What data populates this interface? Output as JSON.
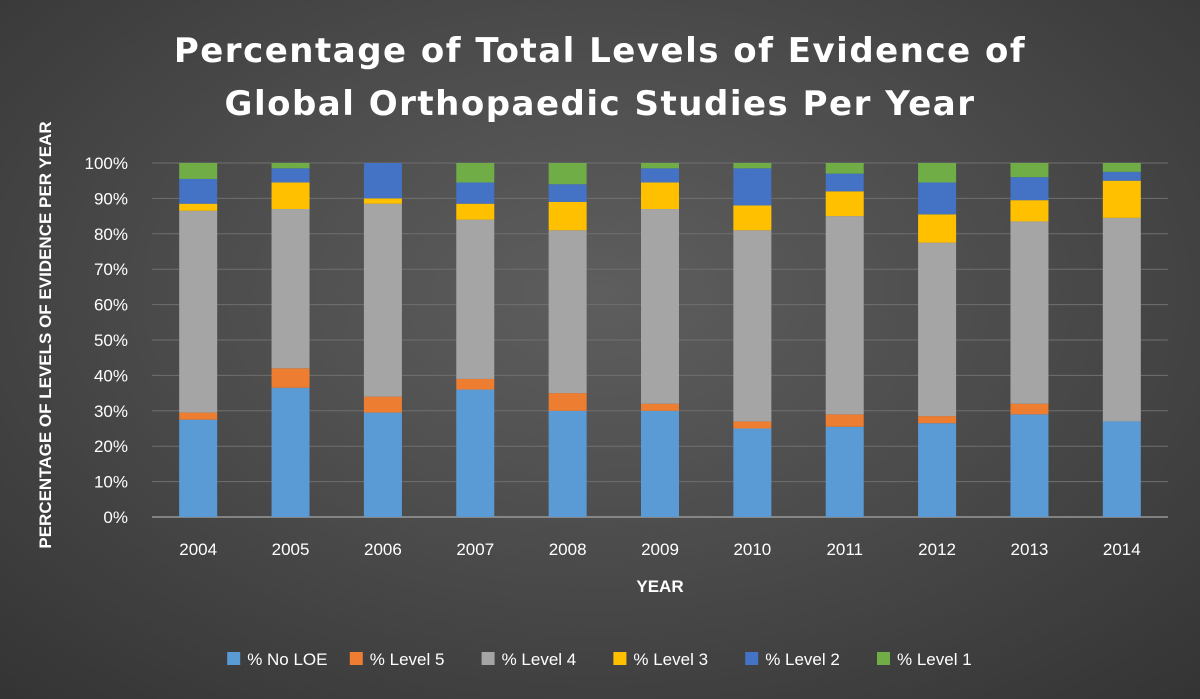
{
  "chart_data": {
    "type": "bar",
    "stacked": true,
    "title_lines": [
      "Percentage of Total Levels of Evidence of",
      "Global Orthopaedic Studies Per Year"
    ],
    "xlabel": "YEAR",
    "ylabel": "PERCENTAGE OF LEVELS OF EVIDENCE PER YEAR",
    "ylim": [
      0,
      100
    ],
    "y_ticks": [
      0,
      10,
      20,
      30,
      40,
      50,
      60,
      70,
      80,
      90,
      100
    ],
    "y_tick_labels": [
      "0%",
      "10%",
      "20%",
      "30%",
      "40%",
      "50%",
      "60%",
      "70%",
      "80%",
      "90%",
      "100%"
    ],
    "grid": true,
    "legend_position": "bottom",
    "categories": [
      "2004",
      "2005",
      "2006",
      "2007",
      "2008",
      "2009",
      "2010",
      "2011",
      "2012",
      "2013",
      "2014"
    ],
    "series": [
      {
        "name": "% No LOE",
        "color": "#5b9bd5",
        "values": [
          27.5,
          36.5,
          29.5,
          36,
          30,
          30,
          25,
          25.5,
          26.5,
          29,
          27
        ]
      },
      {
        "name": "% Level 5",
        "color": "#ed7d31",
        "values": [
          2,
          5.5,
          4.5,
          3,
          5,
          2,
          2,
          3.5,
          2,
          3,
          0
        ]
      },
      {
        "name": "% Level 4",
        "color": "#a5a5a5",
        "values": [
          57,
          45,
          54.5,
          45,
          46,
          55,
          54,
          56,
          49,
          51.5,
          57.5
        ]
      },
      {
        "name": "% Level 3",
        "color": "#ffc000",
        "values": [
          2,
          7.5,
          1.5,
          4.5,
          8,
          7.5,
          7,
          7,
          8,
          6,
          10.5
        ]
      },
      {
        "name": "% Level 2",
        "color": "#4472c4",
        "values": [
          7,
          4,
          10,
          6,
          5,
          4,
          10.5,
          5,
          9,
          6.5,
          2.5
        ]
      },
      {
        "name": "% Level 1",
        "color": "#70ad47",
        "values": [
          4.5,
          1.5,
          0,
          5.5,
          6,
          1.5,
          1.5,
          3,
          5.5,
          4,
          2.5
        ]
      }
    ]
  }
}
